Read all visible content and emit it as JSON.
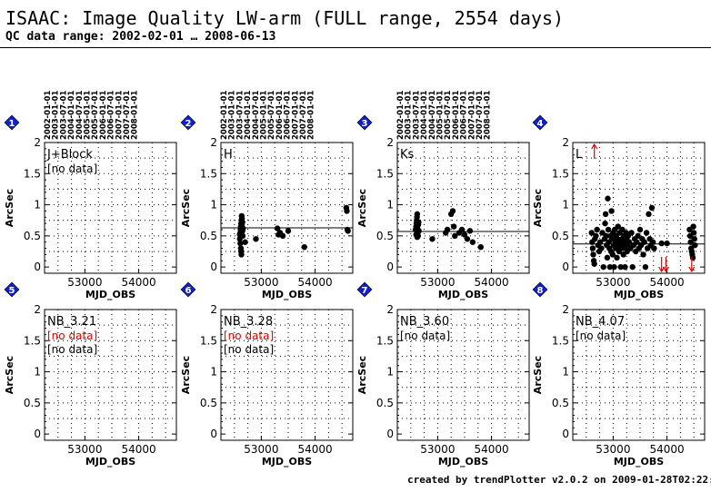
{
  "title": "ISAAC: Image Quality LW-arm (FULL range, 2554 days)",
  "subtitle": "QC data range: 2002-02-01 … 2008-06-13",
  "footer": "created by trendPlotter v2.0.2 on 2009-01-28T02:22:22",
  "date_ticks": [
    "2002-01-01",
    "2003-01-01",
    "2003-07-01",
    "2004-01-01",
    "2004-07-01",
    "2005-01-01",
    "2005-07-01",
    "2006-01-01",
    "2006-07-01",
    "2007-01-01",
    "2007-07-01",
    "2008-01-01"
  ],
  "colors": {
    "badge": "#1020d0",
    "points": "#000000",
    "warning": "#e00000",
    "grid": "#000000"
  },
  "chart_data": [
    {
      "type": "scatter",
      "index": "1",
      "label": "J+Block",
      "notes": [
        "[no data]"
      ],
      "note_colors": [
        "#000000"
      ],
      "xlabel": "MJD_OBS",
      "ylabel": "ArcSec",
      "xlim": [
        52250,
        54700
      ],
      "ylim": [
        -0.1,
        2.0
      ],
      "xticks": [
        53000,
        54000
      ],
      "yticks": [
        0,
        0.5,
        1,
        1.5,
        2
      ],
      "median": null,
      "points": [],
      "outliers": []
    },
    {
      "type": "scatter",
      "index": "2",
      "label": "H",
      "notes": [],
      "note_colors": [],
      "xlabel": "MJD_OBS",
      "ylabel": "ArcSec",
      "xlim": [
        52250,
        54700
      ],
      "ylim": [
        -0.1,
        2.0
      ],
      "xticks": [
        53000,
        54000
      ],
      "yticks": [
        0,
        0.5,
        1,
        1.5,
        2
      ],
      "median": 0.63,
      "points": [
        [
          52600,
          0.52
        ],
        [
          52610,
          0.55
        ],
        [
          52615,
          0.6
        ],
        [
          52620,
          0.65
        ],
        [
          52625,
          0.7
        ],
        [
          52630,
          0.75
        ],
        [
          52635,
          0.82
        ],
        [
          52640,
          0.78
        ],
        [
          52645,
          0.6
        ],
        [
          52650,
          0.58
        ],
        [
          52655,
          0.5
        ],
        [
          52600,
          0.45
        ],
        [
          52610,
          0.38
        ],
        [
          52620,
          0.3
        ],
        [
          52625,
          0.25
        ],
        [
          52630,
          0.2
        ],
        [
          52640,
          0.68
        ],
        [
          52650,
          0.72
        ],
        [
          52660,
          0.62
        ],
        [
          52700,
          0.4
        ],
        [
          52900,
          0.45
        ],
        [
          53300,
          0.62
        ],
        [
          53320,
          0.52
        ],
        [
          53350,
          0.55
        ],
        [
          53400,
          0.5
        ],
        [
          53500,
          0.58
        ],
        [
          53800,
          0.32
        ],
        [
          54580,
          0.95
        ],
        [
          54590,
          0.9
        ],
        [
          54600,
          0.6
        ],
        [
          54610,
          0.58
        ]
      ],
      "outliers": []
    },
    {
      "type": "scatter",
      "index": "3",
      "label": "Ks",
      "notes": [],
      "note_colors": [],
      "xlabel": "MJD_OBS",
      "ylabel": "ArcSec",
      "xlim": [
        52250,
        54700
      ],
      "ylim": [
        -0.1,
        2.0
      ],
      "xticks": [
        53000,
        54000
      ],
      "yticks": [
        0,
        0.5,
        1,
        1.5,
        2
      ],
      "median": 0.57,
      "points": [
        [
          52590,
          0.6
        ],
        [
          52600,
          0.65
        ],
        [
          52605,
          0.7
        ],
        [
          52610,
          0.75
        ],
        [
          52615,
          0.8
        ],
        [
          52620,
          0.85
        ],
        [
          52625,
          0.62
        ],
        [
          52630,
          0.55
        ],
        [
          52635,
          0.5
        ],
        [
          52640,
          0.68
        ],
        [
          52645,
          0.72
        ],
        [
          52650,
          0.58
        ],
        [
          52600,
          0.52
        ],
        [
          52620,
          0.48
        ],
        [
          52900,
          0.45
        ],
        [
          53150,
          0.55
        ],
        [
          53180,
          0.6
        ],
        [
          53250,
          0.85
        ],
        [
          53280,
          0.9
        ],
        [
          53300,
          0.65
        ],
        [
          53320,
          0.5
        ],
        [
          53400,
          0.55
        ],
        [
          53450,
          0.6
        ],
        [
          53500,
          0.52
        ],
        [
          53550,
          0.45
        ],
        [
          53600,
          0.58
        ],
        [
          53650,
          0.4
        ],
        [
          53800,
          0.32
        ]
      ],
      "outliers": []
    },
    {
      "type": "scatter",
      "index": "4",
      "label": "L",
      "notes": [],
      "note_colors": [],
      "xlabel": "MJD_OBS",
      "ylabel": "ArcSec",
      "xlim": [
        52250,
        54700
      ],
      "ylim": [
        -0.1,
        2.0
      ],
      "xticks": [
        53000,
        54000
      ],
      "yticks": [
        0,
        0.5,
        1,
        1.5,
        2
      ],
      "median": 0.37,
      "points": [
        [
          52600,
          0.55
        ],
        [
          52610,
          0.4
        ],
        [
          52620,
          0.3
        ],
        [
          52630,
          0.2
        ],
        [
          52640,
          0.1
        ],
        [
          52650,
          0.05
        ],
        [
          52660,
          0.45
        ],
        [
          52680,
          0.5
        ],
        [
          52700,
          0.6
        ],
        [
          52720,
          0.35
        ],
        [
          52740,
          0.25
        ],
        [
          52760,
          0.4
        ],
        [
          52780,
          0.3
        ],
        [
          52800,
          0.55
        ],
        [
          52820,
          0.0
        ],
        [
          52840,
          0.45
        ],
        [
          52850,
          0.7
        ],
        [
          52860,
          0.85
        ],
        [
          52870,
          0.5
        ],
        [
          52880,
          0.35
        ],
        [
          52890,
          0.15
        ],
        [
          52900,
          1.1
        ],
        [
          52910,
          0.6
        ],
        [
          52920,
          0.4
        ],
        [
          52930,
          0.3
        ],
        [
          52940,
          0.0
        ],
        [
          52950,
          0.5
        ],
        [
          52960,
          0.25
        ],
        [
          52970,
          0.9
        ],
        [
          52980,
          0.45
        ],
        [
          52990,
          0.2
        ],
        [
          53000,
          0.55
        ],
        [
          53010,
          0.35
        ],
        [
          53020,
          0.0
        ],
        [
          53030,
          0.6
        ],
        [
          53040,
          0.4
        ],
        [
          53050,
          0.3
        ],
        [
          53060,
          0.5
        ],
        [
          53070,
          0.15
        ],
        [
          53080,
          0.45
        ],
        [
          53090,
          0.65
        ],
        [
          53100,
          0.35
        ],
        [
          53110,
          0.25
        ],
        [
          53120,
          0.55
        ],
        [
          53130,
          0.4
        ],
        [
          53140,
          0.0
        ],
        [
          53150,
          0.3
        ],
        [
          53160,
          0.45
        ],
        [
          53170,
          0.6
        ],
        [
          53180,
          0.35
        ],
        [
          53190,
          0.2
        ],
        [
          53200,
          0.5
        ],
        [
          53210,
          0.4
        ],
        [
          53220,
          0.0
        ],
        [
          53230,
          0.3
        ],
        [
          53240,
          0.55
        ],
        [
          53250,
          0.45
        ],
        [
          53260,
          0.25
        ],
        [
          53270,
          0.35
        ],
        [
          53280,
          0.5
        ],
        [
          53300,
          0.4
        ],
        [
          53320,
          0.3
        ],
        [
          53340,
          0.55
        ],
        [
          53360,
          0.0
        ],
        [
          53380,
          0.35
        ],
        [
          53400,
          0.45
        ],
        [
          53420,
          0.25
        ],
        [
          53440,
          0.4
        ],
        [
          53460,
          0.5
        ],
        [
          53480,
          0.3
        ],
        [
          53500,
          0.6
        ],
        [
          53520,
          0.35
        ],
        [
          53540,
          0.45
        ],
        [
          53560,
          0.2
        ],
        [
          53580,
          0.4
        ],
        [
          53600,
          0.0
        ],
        [
          53620,
          0.55
        ],
        [
          53640,
          0.3
        ],
        [
          53660,
          0.85
        ],
        [
          53680,
          0.45
        ],
        [
          53700,
          0.35
        ],
        [
          53720,
          0.95
        ],
        [
          53740,
          0.4
        ],
        [
          53760,
          0.3
        ],
        [
          53900,
          0.38
        ],
        [
          54000,
          0.38
        ],
        [
          54420,
          0.6
        ],
        [
          54430,
          0.5
        ],
        [
          54440,
          0.4
        ],
        [
          54450,
          0.3
        ],
        [
          54460,
          0.25
        ],
        [
          54470,
          0.2
        ],
        [
          54480,
          0.15
        ],
        [
          54490,
          0.65
        ],
        [
          54500,
          0.55
        ],
        [
          54510,
          0.45
        ],
        [
          54520,
          0.35
        ]
      ],
      "outliers": [
        [
          52650,
          1.85,
          "up"
        ],
        [
          53900,
          0.15,
          "down"
        ],
        [
          53980,
          0.15,
          "down"
        ],
        [
          54460,
          0.15,
          "down"
        ]
      ]
    },
    {
      "type": "scatter",
      "index": "5",
      "label": "NB_3.21",
      "notes": [
        "[no data]",
        "[no data]"
      ],
      "note_colors": [
        "#e00000",
        "#000000"
      ],
      "xlabel": "MJD_OBS",
      "ylabel": "ArcSec",
      "xlim": [
        52250,
        54700
      ],
      "ylim": [
        -0.1,
        2.0
      ],
      "xticks": [
        53000,
        54000
      ],
      "yticks": [
        0,
        0.5,
        1,
        1.5,
        2
      ],
      "median": null,
      "points": [],
      "outliers": []
    },
    {
      "type": "scatter",
      "index": "6",
      "label": "NB_3.28",
      "notes": [
        "[no data]",
        "[no data]"
      ],
      "note_colors": [
        "#e00000",
        "#000000"
      ],
      "xlabel": "MJD_OBS",
      "ylabel": "ArcSec",
      "xlim": [
        52250,
        54700
      ],
      "ylim": [
        -0.1,
        2.0
      ],
      "xticks": [
        53000,
        54000
      ],
      "yticks": [
        0,
        0.5,
        1,
        1.5,
        2
      ],
      "median": null,
      "points": [],
      "outliers": []
    },
    {
      "type": "scatter",
      "index": "7",
      "label": "NB_3.60",
      "notes": [
        "[no data]"
      ],
      "note_colors": [
        "#000000"
      ],
      "xlabel": "MJD_OBS",
      "ylabel": "ArcSec",
      "xlim": [
        52250,
        54700
      ],
      "ylim": [
        -0.1,
        2.0
      ],
      "xticks": [
        53000,
        54000
      ],
      "yticks": [
        0,
        0.5,
        1,
        1.5,
        2
      ],
      "median": null,
      "points": [],
      "outliers": []
    },
    {
      "type": "scatter",
      "index": "8",
      "label": "NB_4.07",
      "notes": [
        "[no data]"
      ],
      "note_colors": [
        "#000000"
      ],
      "xlabel": "MJD_OBS",
      "ylabel": "ArcSec",
      "xlim": [
        52250,
        54700
      ],
      "ylim": [
        -0.1,
        2.0
      ],
      "xticks": [
        53000,
        54000
      ],
      "yticks": [
        0,
        0.5,
        1,
        1.5,
        2
      ],
      "median": null,
      "points": [],
      "outliers": []
    }
  ]
}
